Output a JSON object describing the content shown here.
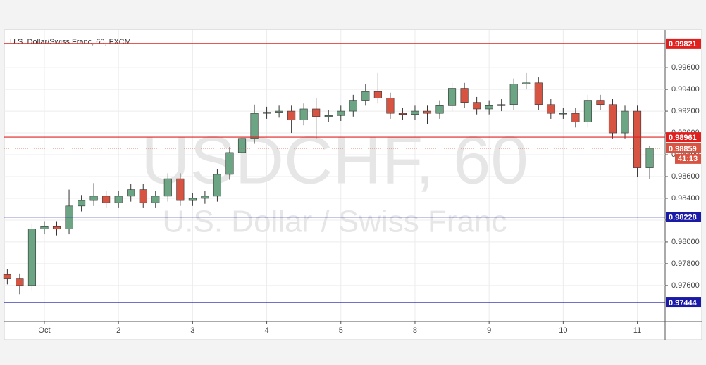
{
  "chart_data": {
    "type": "candlestick",
    "title": "U.S. Dollar/Swiss Franc, 60, FXCM",
    "watermark": "USDCHF, 60",
    "watermark_subtitle": "U.S. Dollar / Swiss Franc",
    "x": [
      -12,
      -8,
      -4,
      0,
      4,
      8,
      12,
      16,
      20,
      24,
      28,
      32,
      36,
      40,
      44,
      48,
      52,
      56,
      60,
      64,
      68,
      72,
      76,
      80,
      84,
      88,
      92,
      96,
      100,
      104,
      108,
      112,
      116,
      120,
      124,
      128,
      132,
      136,
      140,
      144,
      148,
      152,
      156,
      160,
      164,
      168,
      172,
      176,
      180,
      184,
      188,
      192,
      196
    ],
    "open": [
      0.977,
      0.9766,
      0.976,
      0.9812,
      0.9814,
      0.9812,
      0.9833,
      0.9838,
      0.9842,
      0.9836,
      0.9842,
      0.9848,
      0.9836,
      0.9842,
      0.9858,
      0.9838,
      0.984,
      0.9842,
      0.9862,
      0.9882,
      0.9895,
      0.9918,
      0.9919,
      0.992,
      0.9912,
      0.9922,
      0.9915,
      0.9916,
      0.992,
      0.993,
      0.9938,
      0.9932,
      0.9918,
      0.9917,
      0.992,
      0.9918,
      0.9925,
      0.9941,
      0.9928,
      0.9922,
      0.9925,
      0.9926,
      0.9945,
      0.9946,
      0.9926,
      0.9918,
      0.9918,
      0.991,
      0.993,
      0.9926,
      0.99,
      0.992,
      0.9868
    ],
    "high": [
      0.9775,
      0.9771,
      0.9817,
      0.9819,
      0.9819,
      0.9848,
      0.9843,
      0.9854,
      0.9847,
      0.9847,
      0.9853,
      0.9853,
      0.9847,
      0.9863,
      0.9863,
      0.9845,
      0.9847,
      0.9867,
      0.9887,
      0.99,
      0.9926,
      0.9924,
      0.9925,
      0.9925,
      0.9927,
      0.9932,
      0.9921,
      0.9925,
      0.9935,
      0.9945,
      0.9955,
      0.9937,
      0.9923,
      0.9925,
      0.9925,
      0.993,
      0.9946,
      0.9946,
      0.9933,
      0.993,
      0.9931,
      0.995,
      0.9955,
      0.9951,
      0.9931,
      0.9923,
      0.9923,
      0.9935,
      0.9935,
      0.9931,
      0.9925,
      0.9925,
      0.9888
    ],
    "low": [
      0.9761,
      0.9752,
      0.9755,
      0.9807,
      0.9806,
      0.9807,
      0.9828,
      0.9833,
      0.9831,
      0.9831,
      0.9837,
      0.9831,
      0.9831,
      0.9837,
      0.9833,
      0.9833,
      0.9835,
      0.9837,
      0.9857,
      0.9877,
      0.989,
      0.9913,
      0.9914,
      0.99,
      0.9907,
      0.9895,
      0.991,
      0.9911,
      0.9915,
      0.9925,
      0.9927,
      0.9913,
      0.9912,
      0.9912,
      0.9908,
      0.9913,
      0.992,
      0.9923,
      0.9917,
      0.9917,
      0.992,
      0.9921,
      0.994,
      0.9921,
      0.9913,
      0.9913,
      0.9905,
      0.9905,
      0.9921,
      0.9895,
      0.9895,
      0.986,
      0.9858
    ],
    "close": [
      0.9766,
      0.976,
      0.9812,
      0.9814,
      0.9812,
      0.9833,
      0.9838,
      0.9842,
      0.9836,
      0.9842,
      0.9848,
      0.9836,
      0.9842,
      0.9858,
      0.9838,
      0.984,
      0.9842,
      0.9862,
      0.9882,
      0.9895,
      0.9918,
      0.9919,
      0.992,
      0.9912,
      0.9922,
      0.9915,
      0.9916,
      0.992,
      0.993,
      0.9938,
      0.9932,
      0.9918,
      0.9917,
      0.992,
      0.9918,
      0.9925,
      0.9941,
      0.9928,
      0.9922,
      0.9925,
      0.9926,
      0.9945,
      0.9946,
      0.9926,
      0.9918,
      0.9918,
      0.991,
      0.993,
      0.9926,
      0.99,
      0.992,
      0.9868,
      0.98859
    ],
    "up_color": "#6ba583",
    "down_color": "#d75442",
    "xlim": [
      -13,
      201
    ],
    "xticks": [
      {
        "value": 0,
        "label": "Oct"
      },
      {
        "value": 24,
        "label": "2"
      },
      {
        "value": 48,
        "label": "3"
      },
      {
        "value": 72,
        "label": "4"
      },
      {
        "value": 96,
        "label": "5"
      },
      {
        "value": 120,
        "label": "8"
      },
      {
        "value": 144,
        "label": "9"
      },
      {
        "value": 168,
        "label": "10"
      },
      {
        "value": 192,
        "label": "11"
      }
    ],
    "ylim": [
      0.9727,
      0.9993
    ],
    "yticks": [
      {
        "value": 0.976,
        "label": "0.97600"
      },
      {
        "value": 0.978,
        "label": "0.97800"
      },
      {
        "value": 0.98,
        "label": "0.98000"
      },
      {
        "value": 0.982,
        "label": "0.98200"
      },
      {
        "value": 0.984,
        "label": "0.98400"
      },
      {
        "value": 0.986,
        "label": "0.98600"
      },
      {
        "value": 0.988,
        "label": "0.98800"
      },
      {
        "value": 0.99,
        "label": "0.99000"
      },
      {
        "value": 0.992,
        "label": "0.99200"
      },
      {
        "value": 0.994,
        "label": "0.99400"
      },
      {
        "value": 0.996,
        "label": "0.99600"
      }
    ],
    "grid": true,
    "levels": [
      {
        "value": 0.99821,
        "color": "#e0201f"
      },
      {
        "value": 0.98961,
        "color": "#e0201f"
      },
      {
        "value": 0.98228,
        "color": "#1a1aa6"
      },
      {
        "value": 0.97444,
        "color": "#1a1aa6"
      }
    ],
    "last_price": 0.98859,
    "last_price_color": "#d75442",
    "countdown": "41:13"
  }
}
